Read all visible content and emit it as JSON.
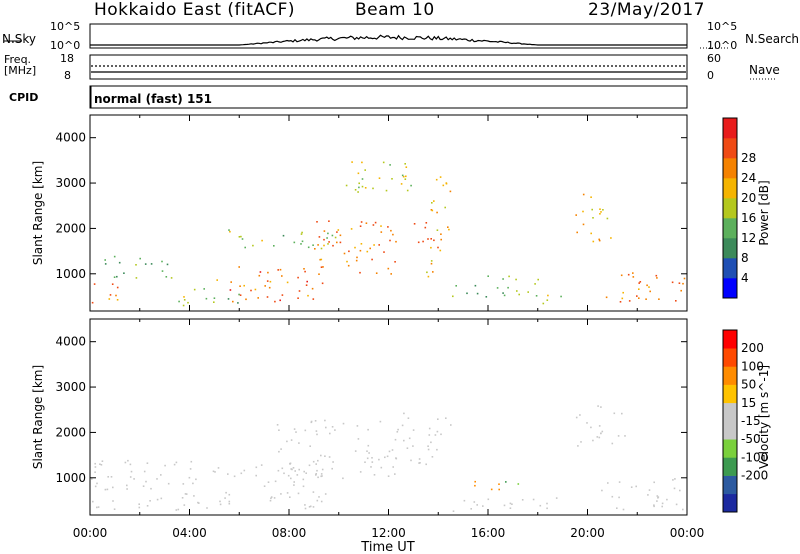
{
  "header": {
    "station": "Hokkaido East (fitACF)",
    "beam": "Beam 10",
    "date": "23/May/2017"
  },
  "noise_panel": {
    "left_label": "N.Sky",
    "right_label": "N.Search",
    "left_ticks": [
      "10^5",
      "10^0"
    ],
    "right_ticks": [
      "10^5",
      "10^0"
    ]
  },
  "freq_panel": {
    "left_label_line1": "Freq.",
    "left_label_line2": "[MHz]",
    "left_ticks": [
      "18",
      "8"
    ],
    "right_ticks": [
      "60",
      "0"
    ],
    "right_label": "Nave"
  },
  "cpid": {
    "label": "CPID",
    "value": "normal (fast) 151"
  },
  "colors": {
    "power_scale": [
      "#0000ff",
      "#1f4fb4",
      "#3c8a5a",
      "#5cb05c",
      "#b4c81e",
      "#f5b400",
      "#f58200",
      "#ef4a14",
      "#e81c1c"
    ],
    "velocity_scale": [
      "#ff0000",
      "#ff4a00",
      "#ff8c00",
      "#ffc300",
      "#c8c8c8",
      "#c8c8c8",
      "#7ad03c",
      "#3c9a50",
      "#2c5aa0",
      "#1c2aa0"
    ]
  },
  "chart_data": [
    {
      "type": "heatmap",
      "name": "power",
      "ylabel": "Slant Range [km]",
      "yticks": [
        "1000",
        "2000",
        "3000",
        "4000"
      ],
      "ylim": [
        180,
        4500
      ],
      "x_range_hours": [
        0,
        24
      ],
      "colorbar_label": "Power [dB]",
      "colorbar_ticks": [
        "4",
        "8",
        "12",
        "16",
        "20",
        "24",
        "28"
      ],
      "colorbar_range": [
        0,
        32
      ],
      "regions": [
        {
          "x": [
            0.0,
            1.5
          ],
          "y": [
            300,
            800
          ],
          "dB": 24
        },
        {
          "x": [
            0.5,
            3.5
          ],
          "y": [
            900,
            1400
          ],
          "dB": 12
        },
        {
          "x": [
            3.5,
            6.5
          ],
          "y": [
            300,
            700
          ],
          "dB": 14
        },
        {
          "x": [
            5.0,
            9.5
          ],
          "y": [
            400,
            1200
          ],
          "dB": 26
        },
        {
          "x": [
            5.5,
            10.0
          ],
          "y": [
            1500,
            2000
          ],
          "dB": 14
        },
        {
          "x": [
            9.0,
            12.5
          ],
          "y": [
            1000,
            2200
          ],
          "dB": 25
        },
        {
          "x": [
            12.0,
            14.0
          ],
          "y": [
            1700,
            2200
          ],
          "dB": 27
        },
        {
          "x": [
            13.5,
            14.5
          ],
          "y": [
            900,
            3200
          ],
          "dB": 22
        },
        {
          "x": [
            14.5,
            18.0
          ],
          "y": [
            500,
            1000
          ],
          "dB": 13
        },
        {
          "x": [
            17.5,
            19.0
          ],
          "y": [
            250,
            550
          ],
          "dB": 15
        },
        {
          "x": [
            19.5,
            21.0
          ],
          "y": [
            1700,
            2800
          ],
          "dB": 20
        },
        {
          "x": [
            20.5,
            24.0
          ],
          "y": [
            400,
            1100
          ],
          "dB": 25
        },
        {
          "x": [
            9.5,
            13.0
          ],
          "y": [
            2800,
            3500
          ],
          "dB": 17
        }
      ]
    },
    {
      "type": "heatmap",
      "name": "velocity",
      "xlabel": "Time UT",
      "xticks": [
        "00:00",
        "04:00",
        "08:00",
        "12:00",
        "16:00",
        "20:00",
        "00:00"
      ],
      "ylabel": "Slant Range [km]",
      "yticks": [
        "1000",
        "2000",
        "3000",
        "4000"
      ],
      "ylim": [
        180,
        4500
      ],
      "x_range_hours": [
        0,
        24
      ],
      "colorbar_label": "Velocity [m s^-1]",
      "colorbar_ticks": [
        "200",
        "100",
        "50",
        "15",
        "-15",
        "-50",
        "-100",
        "-200"
      ],
      "regions": [
        {
          "x": [
            0.0,
            5.5
          ],
          "y": [
            300,
            1400
          ],
          "v": 0
        },
        {
          "x": [
            5.5,
            9.5
          ],
          "y": [
            300,
            1400
          ],
          "v": 0
        },
        {
          "x": [
            7.5,
            12.5
          ],
          "y": [
            1000,
            2300
          ],
          "v": 0
        },
        {
          "x": [
            12.5,
            14.5
          ],
          "y": [
            1300,
            2500
          ],
          "v": 0
        },
        {
          "x": [
            15.0,
            16.5
          ],
          "y": [
            700,
            1000
          ],
          "v": -70
        },
        {
          "x": [
            16.5,
            17.2
          ],
          "y": [
            650,
            950
          ],
          "v": 40
        },
        {
          "x": [
            14.5,
            19.0
          ],
          "y": [
            250,
            600
          ],
          "v": 0
        },
        {
          "x": [
            19.5,
            21.5
          ],
          "y": [
            1700,
            2600
          ],
          "v": 0
        },
        {
          "x": [
            20.5,
            24.0
          ],
          "y": [
            300,
            1000
          ],
          "v": 0
        }
      ]
    }
  ]
}
